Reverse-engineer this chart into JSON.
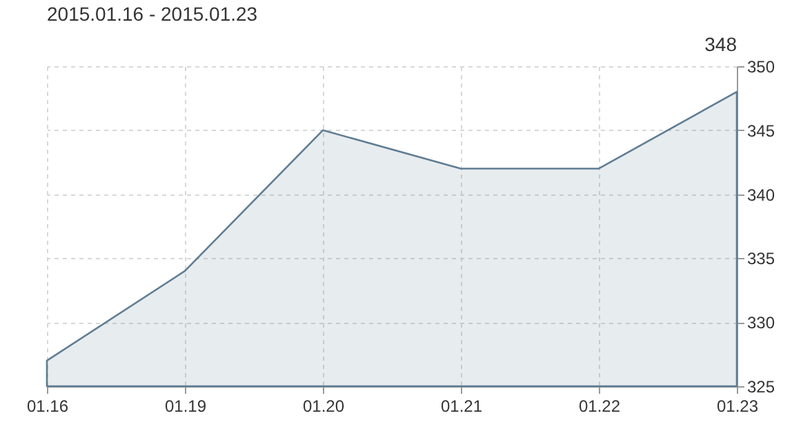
{
  "chart_data": {
    "type": "area",
    "title": "2015.01.16 - 2015.01.23",
    "annotations": [
      "348"
    ],
    "categories": [
      "01.16",
      "01.19",
      "01.20",
      "01.21",
      "01.22",
      "01.23"
    ],
    "series": [
      {
        "color": "#5f7d92",
        "values": [
          327,
          334,
          345,
          342,
          342,
          348
        ]
      }
    ],
    "ylim": [
      325,
      350
    ],
    "yticks": [
      325,
      330,
      335,
      340,
      345,
      350
    ],
    "grid": true
  }
}
